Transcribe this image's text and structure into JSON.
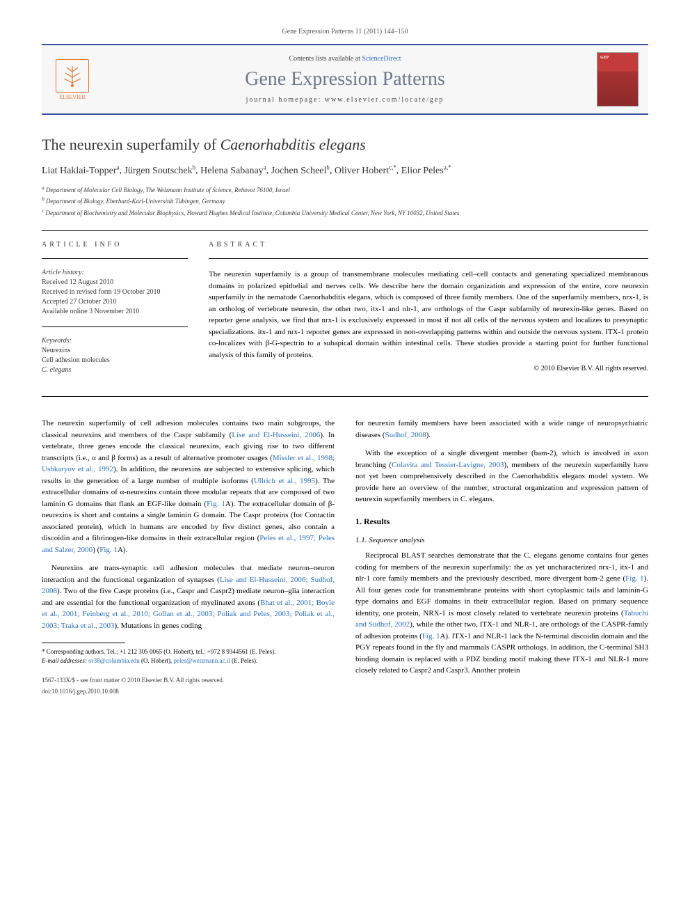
{
  "journal_cite": "Gene Expression Patterns 11 (2011) 144–150",
  "header": {
    "contents_prefix": "Contents lists available at ",
    "contents_link": "ScienceDirect",
    "journal_title": "Gene Expression Patterns",
    "homepage_prefix": "journal homepage: ",
    "homepage_url": "www.elsevier.com/locate/gep",
    "publisher": "ELSEVIER"
  },
  "article": {
    "title_plain": "The neurexin superfamily of ",
    "title_ital": "Caenorhabditis elegans",
    "authors_html": "Liat Haklai-Topper",
    "authors": [
      {
        "name": "Liat Haklai-Topper",
        "sup": "a"
      },
      {
        "name": "Jürgen Soutschek",
        "sup": "b"
      },
      {
        "name": "Helena Sabanay",
        "sup": "a"
      },
      {
        "name": "Jochen Scheel",
        "sup": "b"
      },
      {
        "name": "Oliver Hobert",
        "sup": "c,*"
      },
      {
        "name": "Elior Peles",
        "sup": "a,*"
      }
    ],
    "affiliations": [
      {
        "sup": "a",
        "text": "Department of Molecular Cell Biology, The Weizmann Institute of Science, Rehovot 76100, Israel"
      },
      {
        "sup": "b",
        "text": "Department of Biology, Eberhard-Karl-Universität Tübingen, Germany"
      },
      {
        "sup": "c",
        "text": "Department of Biochemistry and Molecular Biophysics, Howard Hughes Medical Institute, Columbia University Medical Center, New York, NY 10032, United States"
      }
    ]
  },
  "info": {
    "heading": "ARTICLE INFO",
    "history_label": "Article history:",
    "history": [
      "Received 12 August 2010",
      "Received in revised form 19 October 2010",
      "Accepted 27 October 2010",
      "Available online 3 November 2010"
    ],
    "keywords_label": "Keywords:",
    "keywords": [
      "Neurexins",
      "Cell adhesion molecules",
      "C. elegans"
    ]
  },
  "abstract": {
    "heading": "ABSTRACT",
    "text": "The neurexin superfamily is a group of transmembrane molecules mediating cell–cell contacts and generating specialized membranous domains in polarized epithelial and nerves cells. We describe here the domain organization and expression of the entire, core neurexin superfamily in the nematode Caenorhabditis elegans, which is composed of three family members. One of the superfamily members, nrx-1, is an ortholog of vertebrate neurexin, the other two, itx-1 and nlr-1, are orthologs of the Caspr subfamily of neurexin-like genes. Based on reporter gene analysis, we find that nrx-1 is exclusively expressed in most if not all cells of the nervous system and localizes to presynaptic specializations. itx-1 and nrx-1 reporter genes are expressed in non-overlapping patterns within and outside the nervous system. ITX-1 protein co-localizes with β-G-spectrin to a subapical domain within intestinal cells. These studies provide a starting point for further functional analysis of this family of proteins.",
    "copyright": "© 2010 Elsevier B.V. All rights reserved."
  },
  "body": {
    "left": {
      "p1a": "The neurexin superfamily of cell adhesion molecules contains two main subgroups, the classical neurexins and members of the Caspr subfamily (",
      "p1_link1": "Lise and El-Husseini, 2006",
      "p1b": "). In vertebrate, three genes encode the classical neurexins, each giving rise to two different transcripts (i.e., α and β forms) as a result of alternative promoter usages (",
      "p1_link2": "Missler et al., 1998; Ushkaryov et al., 1992",
      "p1c": "). In addition, the neurexins are subjected to extensive splicing, which results in the generation of a large number of multiple isoforms (",
      "p1_link3": "Ullrich et al., 1995",
      "p1d": "). The extracellular domains of α-neurexins contain three modular repeats that are composed of two laminin G domains that flank an EGF-like domain (",
      "p1_link4": "Fig. 1",
      "p1e": "A). The extracellular domain of β-neurexins is short and contains a single laminin G domain. The Caspr proteins (for Contactin associated protein), which in humans are encoded by five distinct genes, also contain a discoidin and a fibrinogen-like domains in their extracellular region (",
      "p1_link5": "Peles et al., 1997; Peles and Salzer, 2000",
      "p1f": ") (",
      "p1_link6": "Fig. 1",
      "p1g": "A).",
      "p2a": "Neurexins are trans-synaptic cell adhesion molecules that mediate neuron–neuron interaction and the functional organization of synapses (",
      "p2_link1": "Lise and El-Husseini, 2006; Sudhof, 2008",
      "p2b": "). Two of the five Caspr proteins (i.e., Caspr and Caspr2) mediate neuron–glia interaction and are essential for the functional organization of myelinated axons (",
      "p2_link2": "Bhat et al., 2001; Boyle et al., 2001; Feinberg et al., 2010; Gollan et al., 2003; Poliak and Peles, 2003; Poliak et al., 2003; Traka et al., 2003",
      "p2c": "). Mutations in genes coding"
    },
    "right": {
      "p1a": "for neurexin family members have been associated with a wide range of neuropsychiatric diseases (",
      "p1_link1": "Sudhof, 2008",
      "p1b": ").",
      "p2a": "With the exception of a single divergent member (bam-2), which is involved in axon branching (",
      "p2_link1": "Colavita and Tessier-Lavigne, 2003",
      "p2b": "), members of the neurexin superfamily have not yet been comprehensively described in the Caenorhabditis elegans model system. We provide here an overview of the number, structural organization and expression pattern of neurexin superfamily members in C. elegans.",
      "sec1": "1. Results",
      "sub11": "1.1. Sequence analysis",
      "p3a": "Reciprocal BLAST searches demonstrate that the C. elegans genome contains four genes coding for members of the neurexin superfamily: the as yet uncharacterized nrx-1, itx-1 and nlr-1 core family members and the previously described, more divergent bam-2 gene (",
      "p3_link1": "Fig. 1",
      "p3b": "). All four genes code for transmembrane proteins with short cytoplasmic tails and laminin-G type domains and EGF domains in their extracellular region. Based on primary sequence identity, one protein, NRX-1 is most closely related to vertebrate neurexin proteins (",
      "p3_link2": "Tabuchi and Sudhof, 2002",
      "p3c": "), while the other two, ITX-1 and NLR-1, are orthologs of the CASPR-family of adhesion proteins (",
      "p3_link3": "Fig. 1",
      "p3d": "A). ITX-1 and NLR-1 lack the N-terminal discoidin domain and the PGY repeats found in the fly and mammals CASPR orthologs. In addition, the C-terminal SH3 binding domain is replaced with a PDZ binding motif making these ITX-1 and NLR-1 more closely related to Caspr2 and Caspr3. Another protein"
    }
  },
  "footnotes": {
    "corr": "* Corresponding authors. Tel.: +1 212 305 0065 (O. Hobert), tel.: +972 8 9344561 (E. Peles).",
    "email_label": "E-mail addresses: ",
    "email1": "or38@columbia.edu",
    "email1_who": " (O. Hobert), ",
    "email2": "peles@weizmann.ac.il",
    "email2_who": " (E. Peles)."
  },
  "footer": {
    "line1": "1567-133X/$ - see front matter © 2010 Elsevier B.V. All rights reserved.",
    "line2": "doi:10.1016/j.gep.2010.10.008"
  },
  "colors": {
    "link": "#2a6fbb",
    "border": "#39509e",
    "orange": "#e8762d"
  }
}
